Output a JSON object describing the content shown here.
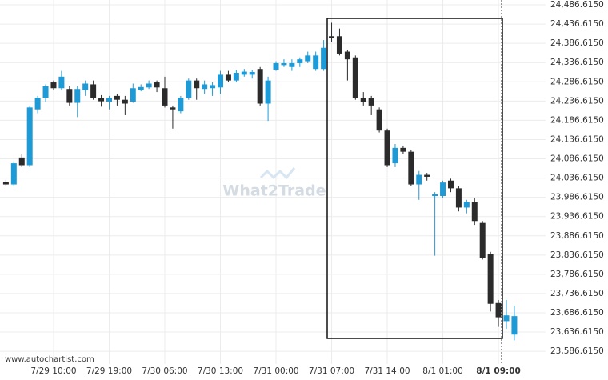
{
  "chart_data": {
    "type": "candlestick",
    "watermark": "What2Trade",
    "source": "www.autochartist.com",
    "categories": [
      null,
      null,
      null,
      null,
      null,
      null,
      "7/29 10:00",
      null,
      null,
      null,
      null,
      null,
      null,
      "7/29 19:00",
      null,
      null,
      null,
      null,
      null,
      null,
      "7/30 06:00",
      null,
      null,
      null,
      null,
      null,
      null,
      "7/30 13:00",
      null,
      null,
      null,
      null,
      null,
      null,
      "7/31 00:00",
      null,
      null,
      null,
      null,
      null,
      null,
      "7/31 07:00",
      null,
      null,
      null,
      null,
      null,
      null,
      "7/31 14:00",
      null,
      null,
      null,
      null,
      null,
      null,
      "8/1 01:00",
      null,
      null,
      null,
      null,
      null,
      null,
      "8/1 09:00",
      null,
      null
    ],
    "open": [
      24026,
      24020,
      24090,
      24070,
      24215,
      24245,
      24285,
      24270,
      24268,
      24232,
      24265,
      24280,
      24245,
      24235,
      24250,
      24240,
      24235,
      24265,
      24272,
      24285,
      24270,
      24220,
      24210,
      24245,
      24290,
      24268,
      24270,
      24272,
      24305,
      24290,
      24305,
      24305,
      24320,
      24230,
      24318,
      24330,
      24325,
      24335,
      24340,
      24320,
      24320,
      24405,
      24405,
      24365,
      24350,
      24245,
      24245,
      24215,
      24160,
      24075,
      24115,
      24105,
      24020,
      24045,
      23990,
      23990,
      24030,
      24010,
      23960,
      23975,
      23920,
      23840,
      23712,
      23665,
      23630
    ],
    "high": [
      24032,
      24080,
      24098,
      24225,
      24250,
      24280,
      24290,
      24315,
      24275,
      24275,
      24290,
      24290,
      24252,
      24250,
      24255,
      24250,
      24282,
      24280,
      24290,
      24290,
      24300,
      24225,
      24250,
      24295,
      24295,
      24290,
      24285,
      24315,
      24315,
      24318,
      24320,
      24318,
      24325,
      24300,
      24340,
      24345,
      24345,
      24350,
      24365,
      24365,
      24395,
      24440,
      24425,
      24370,
      24355,
      24260,
      24250,
      24220,
      24165,
      24125,
      24120,
      24110,
      24055,
      24050,
      24000,
      24030,
      24035,
      24015,
      23980,
      23985,
      23925,
      23845,
      23720,
      23720,
      23705
    ],
    "low": [
      24015,
      24015,
      24065,
      24065,
      24205,
      24235,
      24265,
      24265,
      24225,
      24195,
      24250,
      24240,
      24222,
      24215,
      24225,
      24200,
      24232,
      24262,
      24268,
      24260,
      24220,
      24165,
      24205,
      24240,
      24240,
      24255,
      24250,
      24255,
      24285,
      24285,
      24300,
      24295,
      24225,
      24185,
      24315,
      24325,
      24315,
      24325,
      24335,
      24315,
      24315,
      24390,
      24355,
      24290,
      24240,
      24225,
      24200,
      24155,
      24065,
      24065,
      24100,
      24015,
      23980,
      24030,
      23835,
      23985,
      24000,
      23950,
      23945,
      23915,
      23825,
      23690,
      23650,
      23645,
      23615
    ],
    "close": [
      24020,
      24075,
      24070,
      24220,
      24245,
      24275,
      24270,
      24300,
      24232,
      24268,
      24282,
      24245,
      24236,
      24245,
      24240,
      24230,
      24270,
      24273,
      24282,
      24272,
      24225,
      24215,
      24245,
      24290,
      24270,
      24280,
      24278,
      24305,
      24290,
      24310,
      24313,
      24312,
      24230,
      24290,
      24335,
      24335,
      24335,
      24345,
      24355,
      24355,
      24375,
      24400,
      24360,
      24345,
      24245,
      24235,
      24225,
      24160,
      24070,
      24115,
      24105,
      24020,
      24045,
      24040,
      23995,
      24025,
      24010,
      23960,
      23975,
      23925,
      23830,
      23710,
      23675,
      23680,
      23678
    ],
    "up_color": "#1e9ad6",
    "down_color": "#2b2b2b",
    "ylim": [
      23553.615,
      24499.115
    ],
    "yticks": [
      {
        "value": 24486.615,
        "label": "24,486.6150"
      },
      {
        "value": 24436.615,
        "label": "24,436.6150"
      },
      {
        "value": 24386.615,
        "label": "24,386.6150"
      },
      {
        "value": 24336.615,
        "label": "24,336.6150"
      },
      {
        "value": 24286.615,
        "label": "24,286.6150"
      },
      {
        "value": 24236.615,
        "label": "24,236.6150"
      },
      {
        "value": 24186.615,
        "label": "24,186.6150"
      },
      {
        "value": 24136.615,
        "label": "24,136.6150"
      },
      {
        "value": 24086.615,
        "label": "24,086.6150"
      },
      {
        "value": 24036.615,
        "label": "24,036.6150"
      },
      {
        "value": 23986.615,
        "label": "23,986.6150"
      },
      {
        "value": 23936.615,
        "label": "23,936.6150"
      },
      {
        "value": 23886.615,
        "label": "23,886.6150"
      },
      {
        "value": 23836.615,
        "label": "23,836.6150"
      },
      {
        "value": 23786.615,
        "label": "23,786.6150"
      },
      {
        "value": 23736.615,
        "label": "23,736.6150"
      },
      {
        "value": 23686.615,
        "label": "23,686.6150"
      },
      {
        "value": 23636.615,
        "label": "23,636.6150"
      },
      {
        "value": 23586.615,
        "label": "23,586.6150"
      }
    ],
    "grid": true
  }
}
